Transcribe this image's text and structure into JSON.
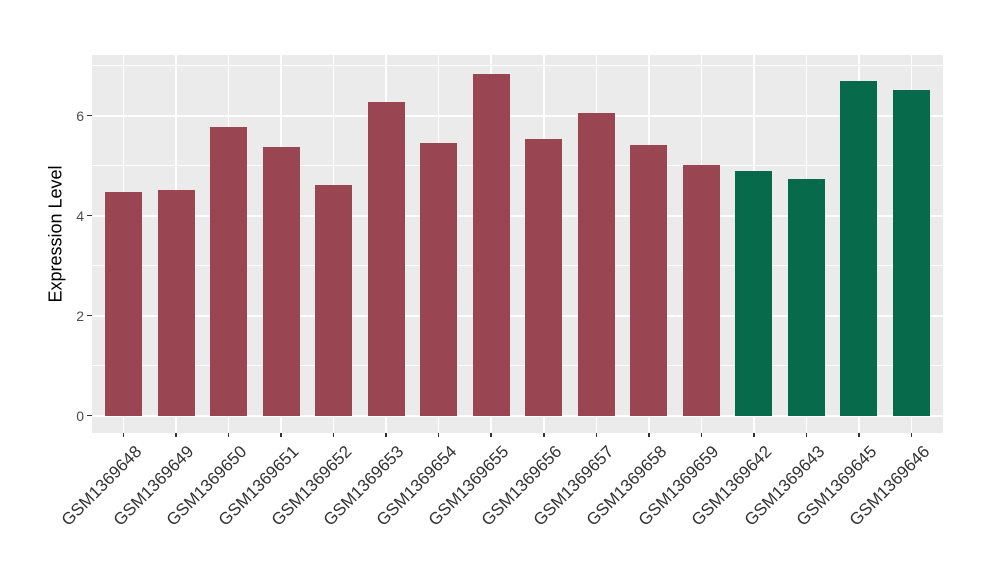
{
  "chart_data": {
    "type": "bar",
    "title": "",
    "xlabel": "",
    "ylabel": "Expression Level",
    "categories": [
      "GSM1369648",
      "GSM1369649",
      "GSM1369650",
      "GSM1369651",
      "GSM1369652",
      "GSM1369653",
      "GSM1369654",
      "GSM1369655",
      "GSM1369656",
      "GSM1369657",
      "GSM1369658",
      "GSM1369659",
      "GSM1369642",
      "GSM1369643",
      "GSM1369645",
      "GSM1369646"
    ],
    "values": [
      4.47,
      4.52,
      5.78,
      5.37,
      4.61,
      6.27,
      5.45,
      6.83,
      5.54,
      6.05,
      5.41,
      5.02,
      4.89,
      4.73,
      6.7,
      6.51
    ],
    "bar_colors": [
      "#9A4552",
      "#9A4552",
      "#9A4552",
      "#9A4552",
      "#9A4552",
      "#9A4552",
      "#9A4552",
      "#9A4552",
      "#9A4552",
      "#9A4552",
      "#9A4552",
      "#9A4552",
      "#066A4B",
      "#066A4B",
      "#066A4B",
      "#066A4B"
    ],
    "group_colors": {
      "group_1": "#9A4552",
      "group_2": "#066A4B"
    },
    "yticks": [
      0,
      2,
      4,
      6
    ],
    "ytick_labels": [
      "0",
      "2",
      "4",
      "6"
    ],
    "minor_gridlines": [
      1,
      3,
      5,
      7
    ],
    "ylim": [
      -0.35,
      7.21
    ],
    "grid": "on",
    "legend": "none",
    "panel_background": "#EBEBEB",
    "gridline_color": "#FFFFFF",
    "bar_baseline": 0
  }
}
